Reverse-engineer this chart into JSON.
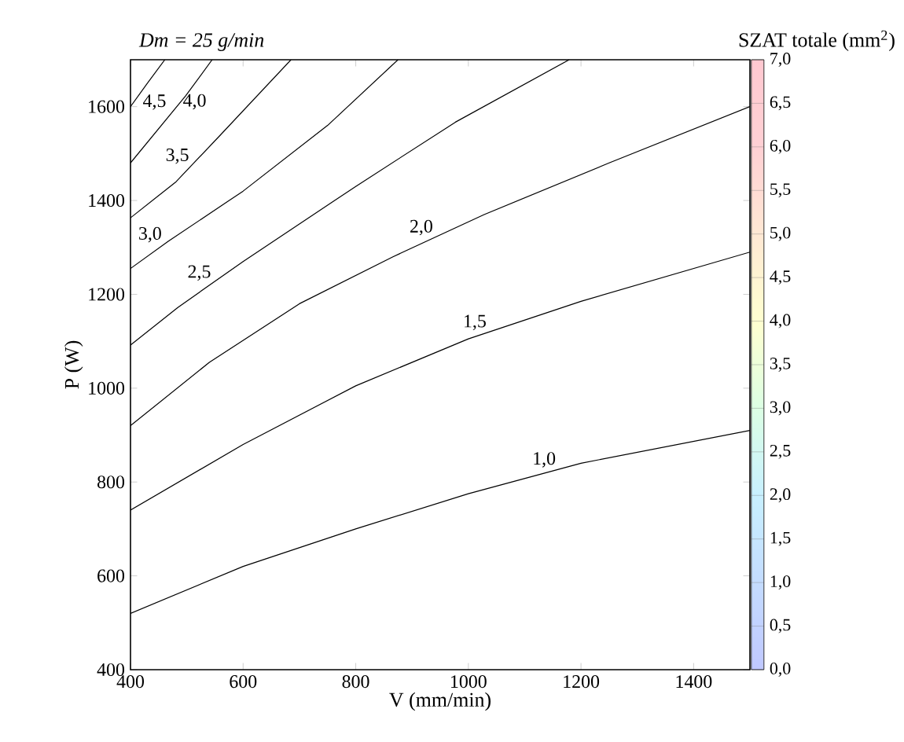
{
  "chart_data": {
    "type": "line",
    "title": "Dm = 25 g/min",
    "xlabel": "V (mm/min)",
    "ylabel": "P (W)",
    "clabel": "SZAT totale (mm$^{2}$)",
    "xlim": [
      400,
      1500
    ],
    "ylim": [
      400,
      1700
    ],
    "xticks": [
      400,
      600,
      800,
      1000,
      1200,
      1400
    ],
    "yticks": [
      400,
      600,
      800,
      1000,
      1200,
      1400,
      1600
    ],
    "clim": [
      0,
      7
    ],
    "cticks": [
      {
        "value": 0,
        "label": "0,0"
      },
      {
        "value": 0.5,
        "label": "0,5"
      },
      {
        "value": 1,
        "label": "1,0"
      },
      {
        "value": 1.5,
        "label": "1,5"
      },
      {
        "value": 2,
        "label": "2,0"
      },
      {
        "value": 2.5,
        "label": "2,5"
      },
      {
        "value": 3,
        "label": "3,0"
      },
      {
        "value": 3.5,
        "label": "3,5"
      },
      {
        "value": 4,
        "label": "4,0"
      },
      {
        "value": 4.5,
        "label": "4,5"
      },
      {
        "value": 5,
        "label": "5,0"
      },
      {
        "value": 5.5,
        "label": "5,5"
      },
      {
        "value": 6,
        "label": "6,0"
      },
      {
        "value": 6.5,
        "label": "6,5"
      },
      {
        "value": 7,
        "label": "7,0"
      }
    ],
    "colors": [
      "#c0c8ff",
      "#c4dcff",
      "#c8f0ff",
      "#dcffe4",
      "#ffffd0",
      "#ffe8d4",
      "#ffd0d4",
      "#ffc8d0"
    ],
    "marker": "none",
    "line_style": "solid",
    "series": [
      {
        "name": "1,0",
        "color": "#000000",
        "x": [
          400,
          600,
          800,
          1000,
          1200,
          1500
        ],
        "values": [
          520,
          620,
          700,
          775,
          840,
          910
        ]
      },
      {
        "name": "1,5",
        "color": "#000000",
        "x": [
          400,
          600,
          800,
          1000,
          1200,
          1500
        ],
        "values": [
          740,
          880,
          1005,
          1105,
          1185,
          1290
        ]
      },
      {
        "name": "2,0",
        "color": "#000000",
        "x": [
          400,
          540,
          700,
          866,
          1028,
          1250,
          1500
        ],
        "values": [
          920,
          1055,
          1180,
          1280,
          1370,
          1480,
          1600
        ]
      },
      {
        "name": "2,5",
        "color": "#000000",
        "x": [
          400,
          484,
          600,
          800,
          977,
          1179
        ],
        "values": [
          1092,
          1172,
          1270,
          1430,
          1567,
          1700
        ]
      },
      {
        "name": "3,0",
        "color": "#000000",
        "x": [
          400,
          467,
          600,
          750,
          875
        ],
        "values": [
          1255,
          1313,
          1420,
          1560,
          1700
        ]
      },
      {
        "name": "3,5",
        "color": "#000000",
        "x": [
          400,
          481,
          560,
          685
        ],
        "values": [
          1363,
          1440,
          1540,
          1700
        ]
      },
      {
        "name": "4,0",
        "color": "#000000",
        "x": [
          400,
          498,
          545
        ],
        "values": [
          1480,
          1623,
          1700
        ]
      },
      {
        "name": "4,5",
        "color": "#000000",
        "x": [
          400,
          430,
          461
        ],
        "values": [
          1600,
          1650,
          1700
        ]
      }
    ]
  }
}
